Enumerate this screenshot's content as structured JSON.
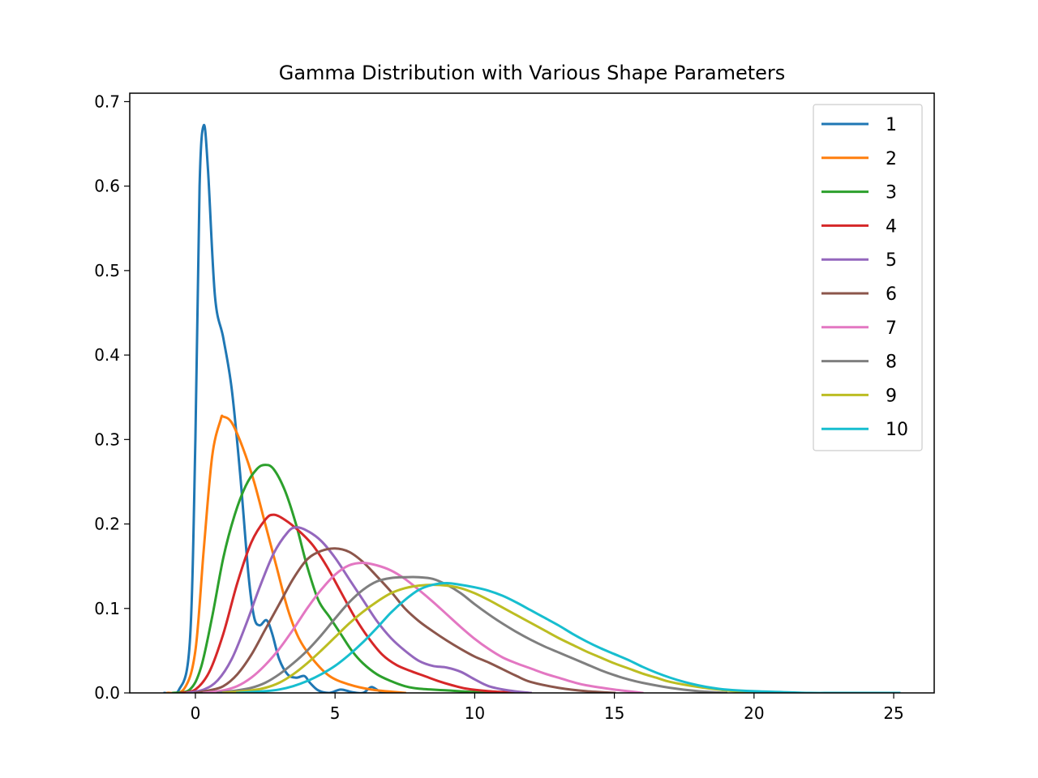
{
  "chart_data": {
    "type": "line",
    "title": "Gamma Distribution with Various Shape Parameters",
    "xlabel": "",
    "ylabel": "",
    "xlim": [
      -2.35,
      26.45
    ],
    "ylim": [
      0,
      0.71
    ],
    "xticks": [
      0,
      5,
      10,
      15,
      20,
      25
    ],
    "yticks": [
      0.0,
      0.1,
      0.2,
      0.3,
      0.4,
      0.5,
      0.6,
      0.7
    ],
    "ytick_labels": [
      "0.0",
      "0.1",
      "0.2",
      "0.3",
      "0.4",
      "0.5",
      "0.6",
      "0.7"
    ],
    "grid": false,
    "legend_position": "top-right",
    "series": [
      {
        "name": "1",
        "color": "#1f77b4",
        "points": [
          [
            -1.1,
            0
          ],
          [
            -0.6,
            0.003
          ],
          [
            -0.2,
            0.06
          ],
          [
            0.0,
            0.3
          ],
          [
            0.15,
            0.6
          ],
          [
            0.3,
            0.672
          ],
          [
            0.45,
            0.62
          ],
          [
            0.7,
            0.47
          ],
          [
            1.0,
            0.42
          ],
          [
            1.3,
            0.36
          ],
          [
            1.6,
            0.26
          ],
          [
            1.9,
            0.14
          ],
          [
            2.1,
            0.09
          ],
          [
            2.3,
            0.08
          ],
          [
            2.55,
            0.086
          ],
          [
            2.75,
            0.07
          ],
          [
            3.0,
            0.04
          ],
          [
            3.3,
            0.022
          ],
          [
            3.6,
            0.018
          ],
          [
            3.9,
            0.02
          ],
          [
            4.1,
            0.012
          ],
          [
            4.4,
            0.003
          ],
          [
            4.8,
            0.0
          ],
          [
            5.2,
            0.004
          ],
          [
            5.6,
            0.001
          ],
          [
            6.0,
            0.0
          ],
          [
            6.3,
            0.007
          ],
          [
            6.6,
            0.002
          ],
          [
            7.0,
            0.0
          ]
        ]
      },
      {
        "name": "2",
        "color": "#ff7f0e",
        "points": [
          [
            -1.0,
            0
          ],
          [
            -0.4,
            0.005
          ],
          [
            0.0,
            0.05
          ],
          [
            0.3,
            0.17
          ],
          [
            0.6,
            0.28
          ],
          [
            0.9,
            0.323
          ],
          [
            1.0,
            0.327
          ],
          [
            1.3,
            0.32
          ],
          [
            1.7,
            0.29
          ],
          [
            2.1,
            0.25
          ],
          [
            2.5,
            0.2
          ],
          [
            2.9,
            0.15
          ],
          [
            3.3,
            0.1
          ],
          [
            3.7,
            0.065
          ],
          [
            4.2,
            0.04
          ],
          [
            4.8,
            0.02
          ],
          [
            5.5,
            0.01
          ],
          [
            6.3,
            0.004
          ],
          [
            7.5,
            0.0
          ]
        ]
      },
      {
        "name": "3",
        "color": "#2ca02c",
        "points": [
          [
            -0.8,
            0
          ],
          [
            -0.2,
            0.004
          ],
          [
            0.2,
            0.03
          ],
          [
            0.6,
            0.09
          ],
          [
            1.0,
            0.16
          ],
          [
            1.4,
            0.21
          ],
          [
            1.8,
            0.245
          ],
          [
            2.2,
            0.265
          ],
          [
            2.5,
            0.27
          ],
          [
            2.8,
            0.265
          ],
          [
            3.2,
            0.24
          ],
          [
            3.6,
            0.2
          ],
          [
            4.0,
            0.15
          ],
          [
            4.4,
            0.11
          ],
          [
            4.8,
            0.09
          ],
          [
            5.2,
            0.07
          ],
          [
            5.6,
            0.05
          ],
          [
            6.0,
            0.035
          ],
          [
            6.5,
            0.022
          ],
          [
            7.0,
            0.014
          ],
          [
            7.5,
            0.008
          ],
          [
            8.0,
            0.005
          ],
          [
            9.0,
            0.003
          ],
          [
            10.0,
            0.001
          ],
          [
            11.0,
            0.0
          ]
        ]
      },
      {
        "name": "4",
        "color": "#d62728",
        "points": [
          [
            -0.5,
            0
          ],
          [
            0.0,
            0.004
          ],
          [
            0.5,
            0.025
          ],
          [
            1.0,
            0.07
          ],
          [
            1.5,
            0.13
          ],
          [
            2.0,
            0.178
          ],
          [
            2.5,
            0.205
          ],
          [
            2.8,
            0.211
          ],
          [
            3.2,
            0.205
          ],
          [
            3.7,
            0.192
          ],
          [
            4.2,
            0.175
          ],
          [
            4.7,
            0.15
          ],
          [
            5.2,
            0.12
          ],
          [
            5.7,
            0.09
          ],
          [
            6.2,
            0.065
          ],
          [
            6.7,
            0.045
          ],
          [
            7.2,
            0.033
          ],
          [
            7.7,
            0.026
          ],
          [
            8.2,
            0.02
          ],
          [
            8.7,
            0.014
          ],
          [
            9.2,
            0.009
          ],
          [
            9.7,
            0.005
          ],
          [
            10.5,
            0.002
          ],
          [
            11.5,
            0.0
          ]
        ]
      },
      {
        "name": "5",
        "color": "#9467bd",
        "points": [
          [
            -0.3,
            0
          ],
          [
            0.3,
            0.004
          ],
          [
            0.8,
            0.015
          ],
          [
            1.3,
            0.04
          ],
          [
            1.8,
            0.08
          ],
          [
            2.3,
            0.125
          ],
          [
            2.8,
            0.165
          ],
          [
            3.3,
            0.19
          ],
          [
            3.6,
            0.196
          ],
          [
            4.0,
            0.192
          ],
          [
            4.5,
            0.18
          ],
          [
            5.0,
            0.16
          ],
          [
            5.5,
            0.135
          ],
          [
            6.0,
            0.11
          ],
          [
            6.5,
            0.085
          ],
          [
            7.0,
            0.065
          ],
          [
            7.5,
            0.05
          ],
          [
            8.0,
            0.038
          ],
          [
            8.5,
            0.032
          ],
          [
            9.0,
            0.03
          ],
          [
            9.5,
            0.025
          ],
          [
            10.0,
            0.016
          ],
          [
            10.5,
            0.008
          ],
          [
            11.2,
            0.003
          ],
          [
            12.0,
            0.0
          ]
        ]
      },
      {
        "name": "6",
        "color": "#8c564b",
        "points": [
          [
            0.0,
            0
          ],
          [
            0.5,
            0.003
          ],
          [
            1.0,
            0.008
          ],
          [
            1.5,
            0.022
          ],
          [
            2.0,
            0.045
          ],
          [
            2.5,
            0.075
          ],
          [
            3.0,
            0.105
          ],
          [
            3.5,
            0.135
          ],
          [
            4.0,
            0.158
          ],
          [
            4.5,
            0.168
          ],
          [
            5.0,
            0.171
          ],
          [
            5.5,
            0.167
          ],
          [
            6.0,
            0.155
          ],
          [
            6.5,
            0.138
          ],
          [
            7.0,
            0.12
          ],
          [
            7.5,
            0.1
          ],
          [
            8.0,
            0.085
          ],
          [
            8.5,
            0.073
          ],
          [
            9.0,
            0.062
          ],
          [
            9.5,
            0.052
          ],
          [
            10.0,
            0.043
          ],
          [
            10.5,
            0.036
          ],
          [
            11.0,
            0.028
          ],
          [
            11.5,
            0.02
          ],
          [
            12.0,
            0.013
          ],
          [
            13.0,
            0.006
          ],
          [
            14.0,
            0.002
          ],
          [
            15.0,
            0.0
          ]
        ]
      },
      {
        "name": "7",
        "color": "#e377c2",
        "points": [
          [
            0.3,
            0
          ],
          [
            1.0,
            0.003
          ],
          [
            1.5,
            0.008
          ],
          [
            2.0,
            0.018
          ],
          [
            2.5,
            0.033
          ],
          [
            3.0,
            0.052
          ],
          [
            3.5,
            0.075
          ],
          [
            4.0,
            0.1
          ],
          [
            4.5,
            0.122
          ],
          [
            5.0,
            0.14
          ],
          [
            5.5,
            0.151
          ],
          [
            6.0,
            0.154
          ],
          [
            6.5,
            0.151
          ],
          [
            7.0,
            0.145
          ],
          [
            7.5,
            0.135
          ],
          [
            8.0,
            0.122
          ],
          [
            8.5,
            0.108
          ],
          [
            9.0,
            0.093
          ],
          [
            9.5,
            0.078
          ],
          [
            10.0,
            0.064
          ],
          [
            10.5,
            0.052
          ],
          [
            11.0,
            0.042
          ],
          [
            11.5,
            0.035
          ],
          [
            12.0,
            0.029
          ],
          [
            12.5,
            0.023
          ],
          [
            13.0,
            0.018
          ],
          [
            13.5,
            0.013
          ],
          [
            14.0,
            0.009
          ],
          [
            15.0,
            0.004
          ],
          [
            16.0,
            0.0
          ]
        ]
      },
      {
        "name": "8",
        "color": "#7f7f7f",
        "points": [
          [
            0.8,
            0
          ],
          [
            1.5,
            0.003
          ],
          [
            2.0,
            0.006
          ],
          [
            2.5,
            0.012
          ],
          [
            3.0,
            0.022
          ],
          [
            3.5,
            0.035
          ],
          [
            4.0,
            0.05
          ],
          [
            4.5,
            0.068
          ],
          [
            5.0,
            0.088
          ],
          [
            5.5,
            0.107
          ],
          [
            6.0,
            0.122
          ],
          [
            6.5,
            0.132
          ],
          [
            7.0,
            0.136
          ],
          [
            7.5,
            0.137
          ],
          [
            8.0,
            0.137
          ],
          [
            8.5,
            0.135
          ],
          [
            9.0,
            0.128
          ],
          [
            9.5,
            0.118
          ],
          [
            10.0,
            0.105
          ],
          [
            10.5,
            0.093
          ],
          [
            11.0,
            0.082
          ],
          [
            11.5,
            0.072
          ],
          [
            12.0,
            0.063
          ],
          [
            12.5,
            0.055
          ],
          [
            13.0,
            0.048
          ],
          [
            13.5,
            0.041
          ],
          [
            14.0,
            0.034
          ],
          [
            14.5,
            0.027
          ],
          [
            15.0,
            0.021
          ],
          [
            15.5,
            0.016
          ],
          [
            16.0,
            0.012
          ],
          [
            17.0,
            0.006
          ],
          [
            18.0,
            0.002
          ],
          [
            19.0,
            0.0
          ]
        ]
      },
      {
        "name": "9",
        "color": "#bcbd22",
        "points": [
          [
            1.0,
            0
          ],
          [
            2.0,
            0.003
          ],
          [
            2.5,
            0.006
          ],
          [
            3.0,
            0.012
          ],
          [
            3.5,
            0.022
          ],
          [
            4.0,
            0.035
          ],
          [
            4.5,
            0.05
          ],
          [
            5.0,
            0.066
          ],
          [
            5.5,
            0.082
          ],
          [
            6.0,
            0.096
          ],
          [
            6.5,
            0.108
          ],
          [
            7.0,
            0.118
          ],
          [
            7.5,
            0.124
          ],
          [
            8.0,
            0.127
          ],
          [
            8.5,
            0.128
          ],
          [
            9.0,
            0.127
          ],
          [
            9.5,
            0.124
          ],
          [
            10.0,
            0.118
          ],
          [
            10.5,
            0.11
          ],
          [
            11.0,
            0.101
          ],
          [
            11.5,
            0.092
          ],
          [
            12.0,
            0.083
          ],
          [
            12.5,
            0.074
          ],
          [
            13.0,
            0.065
          ],
          [
            13.5,
            0.057
          ],
          [
            14.0,
            0.049
          ],
          [
            14.5,
            0.042
          ],
          [
            15.0,
            0.035
          ],
          [
            15.5,
            0.029
          ],
          [
            16.0,
            0.023
          ],
          [
            16.5,
            0.018
          ],
          [
            17.0,
            0.013
          ],
          [
            18.0,
            0.007
          ],
          [
            19.0,
            0.003
          ],
          [
            20.0,
            0.0
          ]
        ]
      },
      {
        "name": "10",
        "color": "#17becf",
        "points": [
          [
            1.5,
            0
          ],
          [
            2.5,
            0.002
          ],
          [
            3.0,
            0.004
          ],
          [
            3.5,
            0.008
          ],
          [
            4.0,
            0.014
          ],
          [
            4.5,
            0.022
          ],
          [
            5.0,
            0.032
          ],
          [
            5.5,
            0.045
          ],
          [
            6.0,
            0.06
          ],
          [
            6.5,
            0.077
          ],
          [
            7.0,
            0.095
          ],
          [
            7.5,
            0.11
          ],
          [
            8.0,
            0.122
          ],
          [
            8.5,
            0.128
          ],
          [
            9.0,
            0.13
          ],
          [
            9.5,
            0.128
          ],
          [
            10.0,
            0.125
          ],
          [
            10.5,
            0.121
          ],
          [
            11.0,
            0.115
          ],
          [
            11.5,
            0.107
          ],
          [
            12.0,
            0.098
          ],
          [
            12.5,
            0.089
          ],
          [
            13.0,
            0.08
          ],
          [
            13.5,
            0.07
          ],
          [
            14.0,
            0.061
          ],
          [
            14.5,
            0.053
          ],
          [
            15.0,
            0.046
          ],
          [
            15.5,
            0.039
          ],
          [
            16.0,
            0.031
          ],
          [
            16.5,
            0.024
          ],
          [
            17.0,
            0.018
          ],
          [
            17.5,
            0.013
          ],
          [
            18.0,
            0.009
          ],
          [
            18.5,
            0.006
          ],
          [
            19.0,
            0.004
          ],
          [
            20.0,
            0.002
          ],
          [
            21.0,
            0.001
          ],
          [
            22.0,
            0.0
          ],
          [
            23.0,
            0.0
          ],
          [
            24.0,
            0.0
          ],
          [
            25.2,
            0.0
          ]
        ]
      }
    ]
  }
}
